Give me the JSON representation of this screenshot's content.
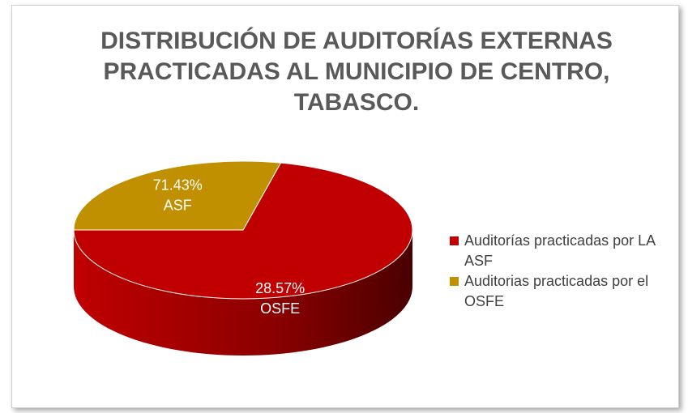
{
  "chart_data": {
    "type": "pie",
    "title": [
      "DISTRIBUCIÓN DE AUDITORÍAS EXTERNAS",
      "PRACTICADAS AL MUNICIPIO DE CENTRO,",
      "TABASCO."
    ],
    "categories": [
      "Auditorías practicadas por LA ASF",
      "Auditorias practicadas por el OSFE"
    ],
    "values": [
      71.43,
      28.57
    ],
    "colors": [
      "#c00000",
      "#c09000"
    ],
    "annotations": [
      [
        "28.57%",
        "OSFE"
      ],
      [
        "71.43%",
        "ASF"
      ]
    ],
    "legend": "right"
  }
}
